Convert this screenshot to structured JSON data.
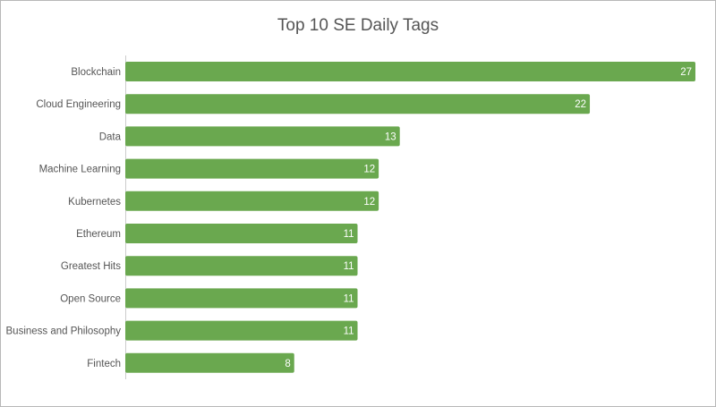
{
  "chart_data": {
    "type": "bar",
    "orientation": "horizontal",
    "title": "Top 10 SE Daily Tags",
    "xlabel": "",
    "ylabel": "",
    "categories": [
      "Blockchain",
      "Cloud Engineering",
      "Data",
      "Machine Learning",
      "Kubernetes",
      "Ethereum",
      "Greatest Hits",
      "Open Source",
      "Business and Philosophy",
      "Fintech"
    ],
    "values": [
      27,
      22,
      13,
      12,
      12,
      11,
      11,
      11,
      11,
      8
    ],
    "xlim": [
      0,
      27
    ],
    "grid": false,
    "legend": "none",
    "bar_color": "#6aa84f",
    "data_labels": true
  }
}
